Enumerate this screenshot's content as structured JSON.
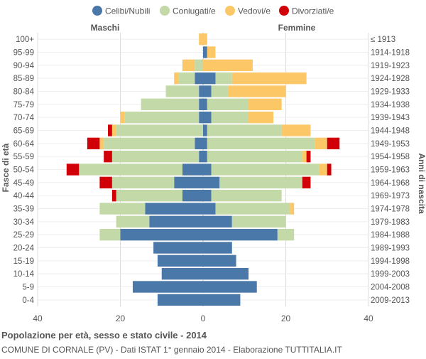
{
  "footer": {
    "title": "Popolazione per età, sesso e stato civile - 2014",
    "subtitle": "COMUNE DI CORNALE (PV) - Dati ISTAT 1° gennaio 2014 - Elaborazione TUTTITALIA.IT"
  },
  "colors": {
    "celibi": "#4a78a8",
    "coniugati": "#c3d9a7",
    "vedovi": "#fcc867",
    "divorziati": "#d10008",
    "grid": "#dddddd",
    "center": "#bbbbbb",
    "text": "#555555"
  },
  "chart_data": {
    "type": "bar",
    "orientation": "horizontal-population-pyramid",
    "left_label": "Maschi",
    "right_label": "Femmine",
    "ylabel": "Fasce di età",
    "ylabel_right": "Anni di nascita",
    "xlim": [
      -40,
      40
    ],
    "xticks": [
      "40",
      "20",
      "0",
      "20",
      "40"
    ],
    "grid": true,
    "legend_position": "top",
    "legend": [
      "Celibi/Nubili",
      "Coniugati/e",
      "Vedovi/e",
      "Divorziati/e"
    ],
    "categories": [
      "100+",
      "95-99",
      "90-94",
      "85-89",
      "80-84",
      "75-79",
      "70-74",
      "65-69",
      "60-64",
      "55-59",
      "50-54",
      "45-49",
      "40-44",
      "35-39",
      "30-34",
      "25-29",
      "20-24",
      "15-19",
      "10-14",
      "5-9",
      "0-4"
    ],
    "birth_years": [
      "≤ 1913",
      "1914-1918",
      "1919-1923",
      "1924-1928",
      "1929-1933",
      "1934-1938",
      "1939-1943",
      "1944-1948",
      "1949-1953",
      "1954-1958",
      "1959-1963",
      "1964-1968",
      "1969-1973",
      "1974-1978",
      "1979-1983",
      "1984-1988",
      "1989-1993",
      "1994-1998",
      "1999-2003",
      "2004-2008",
      "2009-2013"
    ],
    "males": [
      {
        "celibi": 0,
        "coniugati": 0,
        "vedovi": 1,
        "divorziati": 0
      },
      {
        "celibi": 0,
        "coniugati": 0,
        "vedovi": 0,
        "divorziati": 0
      },
      {
        "celibi": 0,
        "coniugati": 2,
        "vedovi": 3,
        "divorziati": 0
      },
      {
        "celibi": 2,
        "coniugati": 4,
        "vedovi": 1,
        "divorziati": 0
      },
      {
        "celibi": 1,
        "coniugati": 8,
        "vedovi": 0,
        "divorziati": 0
      },
      {
        "celibi": 1,
        "coniugati": 14,
        "vedovi": 0,
        "divorziati": 0
      },
      {
        "celibi": 1,
        "coniugati": 18,
        "vedovi": 1,
        "divorziati": 0
      },
      {
        "celibi": 0,
        "coniugati": 21,
        "vedovi": 1,
        "divorziati": 1
      },
      {
        "celibi": 2,
        "coniugati": 22,
        "vedovi": 1,
        "divorziati": 3
      },
      {
        "celibi": 1,
        "coniugati": 21,
        "vedovi": 0,
        "divorziati": 2
      },
      {
        "celibi": 5,
        "coniugati": 25,
        "vedovi": 0,
        "divorziati": 3
      },
      {
        "celibi": 7,
        "coniugati": 15,
        "vedovi": 0,
        "divorziati": 3
      },
      {
        "celibi": 5,
        "coniugati": 16,
        "vedovi": 0,
        "divorziati": 1
      },
      {
        "celibi": 14,
        "coniugati": 11,
        "vedovi": 0,
        "divorziati": 0
      },
      {
        "celibi": 13,
        "coniugati": 8,
        "vedovi": 0,
        "divorziati": 0
      },
      {
        "celibi": 20,
        "coniugati": 5,
        "vedovi": 0,
        "divorziati": 0
      },
      {
        "celibi": 12,
        "coniugati": 0,
        "vedovi": 0,
        "divorziati": 0
      },
      {
        "celibi": 11,
        "coniugati": 0,
        "vedovi": 0,
        "divorziati": 0
      },
      {
        "celibi": 10,
        "coniugati": 0,
        "vedovi": 0,
        "divorziati": 0
      },
      {
        "celibi": 17,
        "coniugati": 0,
        "vedovi": 0,
        "divorziati": 0
      },
      {
        "celibi": 11,
        "coniugati": 0,
        "vedovi": 0,
        "divorziati": 0
      }
    ],
    "females": [
      {
        "celibi": 0,
        "coniugati": 0,
        "vedovi": 1,
        "divorziati": 0
      },
      {
        "celibi": 1,
        "coniugati": 0,
        "vedovi": 2,
        "divorziati": 0
      },
      {
        "celibi": 0,
        "coniugati": 0,
        "vedovi": 12,
        "divorziati": 0
      },
      {
        "celibi": 3,
        "coniugati": 4,
        "vedovi": 18,
        "divorziati": 0
      },
      {
        "celibi": 2,
        "coniugati": 4,
        "vedovi": 14,
        "divorziati": 0
      },
      {
        "celibi": 1,
        "coniugati": 10,
        "vedovi": 8,
        "divorziati": 0
      },
      {
        "celibi": 2,
        "coniugati": 9,
        "vedovi": 6,
        "divorziati": 0
      },
      {
        "celibi": 1,
        "coniugati": 18,
        "vedovi": 7,
        "divorziati": 0
      },
      {
        "celibi": 1,
        "coniugati": 26,
        "vedovi": 3,
        "divorziati": 3
      },
      {
        "celibi": 1,
        "coniugati": 23,
        "vedovi": 1,
        "divorziati": 1
      },
      {
        "celibi": 2,
        "coniugati": 26,
        "vedovi": 2,
        "divorziati": 1
      },
      {
        "celibi": 4,
        "coniugati": 20,
        "vedovi": 0,
        "divorziati": 2
      },
      {
        "celibi": 2,
        "coniugati": 17,
        "vedovi": 0,
        "divorziati": 0
      },
      {
        "celibi": 3,
        "coniugati": 18,
        "vedovi": 1,
        "divorziati": 0
      },
      {
        "celibi": 7,
        "coniugati": 13,
        "vedovi": 0,
        "divorziati": 0
      },
      {
        "celibi": 18,
        "coniugati": 4,
        "vedovi": 0,
        "divorziati": 0
      },
      {
        "celibi": 7,
        "coniugati": 0,
        "vedovi": 0,
        "divorziati": 0
      },
      {
        "celibi": 8,
        "coniugati": 0,
        "vedovi": 0,
        "divorziati": 0
      },
      {
        "celibi": 11,
        "coniugati": 0,
        "vedovi": 0,
        "divorziati": 0
      },
      {
        "celibi": 13,
        "coniugati": 0,
        "vedovi": 0,
        "divorziati": 0
      },
      {
        "celibi": 9,
        "coniugati": 0,
        "vedovi": 0,
        "divorziati": 0
      }
    ]
  }
}
